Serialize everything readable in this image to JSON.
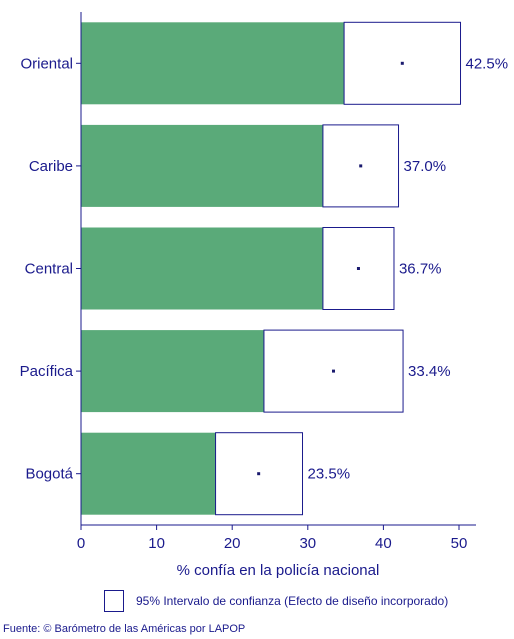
{
  "chart_data": {
    "type": "bar",
    "orientation": "horizontal",
    "categories": [
      "Oriental",
      "Caribe",
      "Central",
      "Pacífica",
      "Bogotá"
    ],
    "values": [
      42.5,
      37.0,
      36.7,
      33.4,
      23.5
    ],
    "value_labels": [
      "42.5%",
      "37.0%",
      "36.7%",
      "33.4%",
      "23.5%"
    ],
    "ci_low": [
      34.8,
      32.0,
      32.0,
      24.2,
      17.8
    ],
    "ci_high": [
      50.2,
      42.0,
      41.4,
      42.6,
      29.3
    ],
    "xlabel": "% confía en la policía nacional",
    "xlim": [
      0,
      50
    ],
    "xticks": [
      0,
      10,
      20,
      30,
      40,
      50
    ],
    "grid": false,
    "colors": {
      "bar": "#5aaa79",
      "ci_box": "#ffffff",
      "axis": "#1a1a8c",
      "point": "#1a1a6e"
    }
  },
  "legend": {
    "label": "95% Intervalo de confianza (Efecto de diseño incorporado)"
  },
  "source": "Fuente: © Barómetro de las Américas por LAPOP"
}
